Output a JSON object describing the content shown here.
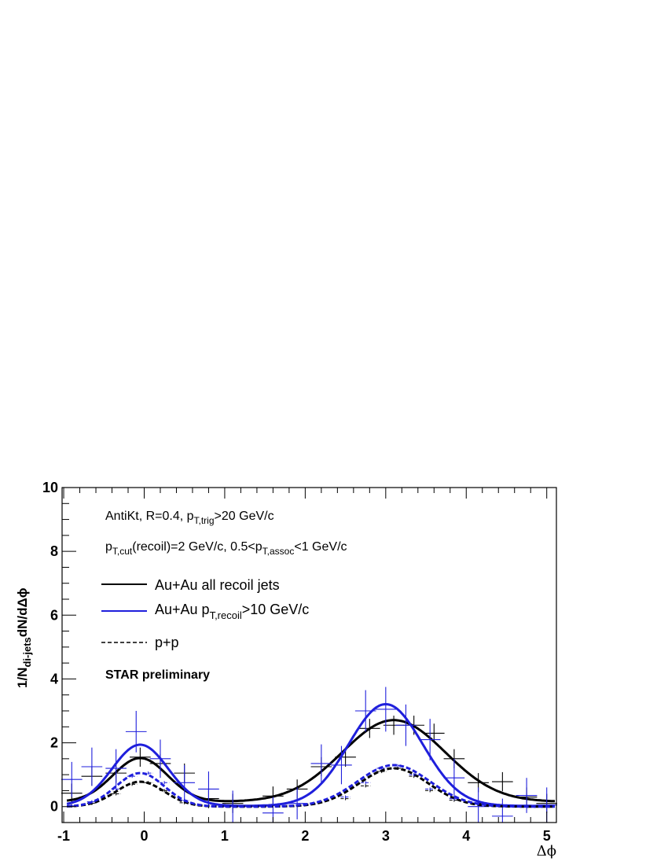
{
  "chart_data": {
    "type": "line",
    "xlabel": "Δϕ",
    "ylabel": "1/N",
    "ylabel_sub": "di-jets",
    "ylabel_tail": "dN/dΔϕ",
    "xlim": [
      -1.02,
      5.12
    ],
    "ylim": [
      -0.5,
      10
    ],
    "x_ticks": [
      -1,
      0,
      1,
      2,
      3,
      4,
      5
    ],
    "y_ticks": [
      0,
      2,
      4,
      6,
      8,
      10
    ],
    "annotation_line1": {
      "pre": "AntiKt, R=0.4, p",
      "sub": "T,trig",
      "post": ">20 GeV/c"
    },
    "annotation_line2": {
      "pre": "p",
      "sub": "T,cut",
      "mid": "(recoil)=2 GeV/c, 0.5<p",
      "sub2": "T,assoc",
      "post": "<1 GeV/c"
    },
    "label_preliminary": "STAR preliminary",
    "legend_placement": "top-left",
    "series": [
      {
        "name": "Au+Au all recoil jets",
        "legend": {
          "pre": "Au+Au all recoil jets",
          "sub": "",
          "post": ""
        },
        "color": "#000000",
        "dash": "solid",
        "curve_width": 3,
        "curve": {
          "peaks": [
            {
              "mu": -0.05,
              "sigma": 0.34,
              "amp": 1.37
            },
            {
              "mu": 3.1,
              "sigma": 0.64,
              "amp": 2.56
            }
          ],
          "base": 0.15
        },
        "points": [
          {
            "x": -0.9,
            "y": 0.42,
            "ex": 0.13,
            "ey": 0.3
          },
          {
            "x": -0.65,
            "y": 0.95,
            "ex": 0.13,
            "ey": 0.3
          },
          {
            "x": -0.35,
            "y": 1.05,
            "ex": 0.13,
            "ey": 0.3
          },
          {
            "x": -0.05,
            "y": 1.55,
            "ex": 0.13,
            "ey": 0.3
          },
          {
            "x": 0.2,
            "y": 1.35,
            "ex": 0.13,
            "ey": 0.3
          },
          {
            "x": 0.5,
            "y": 1.05,
            "ex": 0.13,
            "ey": 0.3
          },
          {
            "x": 0.8,
            "y": 0.25,
            "ex": 0.13,
            "ey": 0.3
          },
          {
            "x": 1.1,
            "y": 0.1,
            "ex": 0.13,
            "ey": 0.3
          },
          {
            "x": 1.6,
            "y": 0.33,
            "ex": 0.13,
            "ey": 0.3
          },
          {
            "x": 1.9,
            "y": 0.55,
            "ex": 0.13,
            "ey": 0.3
          },
          {
            "x": 2.2,
            "y": 1.25,
            "ex": 0.13,
            "ey": 0.3
          },
          {
            "x": 2.5,
            "y": 1.55,
            "ex": 0.13,
            "ey": 0.3
          },
          {
            "x": 2.8,
            "y": 2.45,
            "ex": 0.13,
            "ey": 0.3
          },
          {
            "x": 3.1,
            "y": 2.55,
            "ex": 0.13,
            "ey": 0.3
          },
          {
            "x": 3.35,
            "y": 2.55,
            "ex": 0.13,
            "ey": 0.3
          },
          {
            "x": 3.6,
            "y": 2.3,
            "ex": 0.13,
            "ey": 0.3
          },
          {
            "x": 3.85,
            "y": 1.5,
            "ex": 0.13,
            "ey": 0.3
          },
          {
            "x": 4.15,
            "y": 0.75,
            "ex": 0.13,
            "ey": 0.3
          },
          {
            "x": 4.45,
            "y": 0.78,
            "ex": 0.13,
            "ey": 0.3
          },
          {
            "x": 4.75,
            "y": 0.3,
            "ex": 0.13,
            "ey": 0.3
          },
          {
            "x": 5.0,
            "y": 0.1,
            "ex": 0.13,
            "ey": 0.3
          }
        ]
      },
      {
        "name": "Au+Au pT,recoil>10 GeV/c",
        "legend": {
          "pre": "Au+Au p",
          "sub": "T,recoil",
          "post": ">10 GeV/c"
        },
        "color": "#1f1fdc",
        "dash": "solid",
        "curve_width": 3,
        "curve": {
          "peaks": [
            {
              "mu": -0.05,
              "sigma": 0.35,
              "amp": 1.92
            },
            {
              "mu": 3.0,
              "sigma": 0.46,
              "amp": 3.19
            }
          ],
          "base": 0.02
        },
        "points": [
          {
            "x": -0.9,
            "y": 0.85,
            "ex": 0.13,
            "ey": 0.55
          },
          {
            "x": -0.65,
            "y": 1.25,
            "ex": 0.13,
            "ey": 0.6
          },
          {
            "x": -0.35,
            "y": 1.2,
            "ex": 0.13,
            "ey": 0.6
          },
          {
            "x": -0.1,
            "y": 2.35,
            "ex": 0.13,
            "ey": 0.65
          },
          {
            "x": 0.2,
            "y": 1.5,
            "ex": 0.13,
            "ey": 0.6
          },
          {
            "x": 0.5,
            "y": 0.75,
            "ex": 0.13,
            "ey": 0.55
          },
          {
            "x": 0.8,
            "y": 0.55,
            "ex": 0.13,
            "ey": 0.55
          },
          {
            "x": 1.1,
            "y": 0.0,
            "ex": 0.13,
            "ey": 0.5
          },
          {
            "x": 1.6,
            "y": -0.2,
            "ex": 0.13,
            "ey": 0.5
          },
          {
            "x": 1.9,
            "y": 0.1,
            "ex": 0.13,
            "ey": 0.5
          },
          {
            "x": 2.2,
            "y": 1.35,
            "ex": 0.13,
            "ey": 0.6
          },
          {
            "x": 2.45,
            "y": 1.3,
            "ex": 0.13,
            "ey": 0.6
          },
          {
            "x": 2.75,
            "y": 3.0,
            "ex": 0.13,
            "ey": 0.65
          },
          {
            "x": 3.0,
            "y": 3.05,
            "ex": 0.13,
            "ey": 0.7
          },
          {
            "x": 3.25,
            "y": 2.55,
            "ex": 0.13,
            "ey": 0.65
          },
          {
            "x": 3.55,
            "y": 2.1,
            "ex": 0.13,
            "ey": 0.65
          },
          {
            "x": 3.85,
            "y": 0.9,
            "ex": 0.13,
            "ey": 0.6
          },
          {
            "x": 4.15,
            "y": 0.0,
            "ex": 0.13,
            "ey": 0.6
          },
          {
            "x": 4.45,
            "y": -0.3,
            "ex": 0.13,
            "ey": 0.55
          },
          {
            "x": 4.75,
            "y": 0.35,
            "ex": 0.13,
            "ey": 0.55
          },
          {
            "x": 5.0,
            "y": 0.05,
            "ex": 0.13,
            "ey": 0.55
          }
        ]
      },
      {
        "name": "p+p",
        "legend": {
          "pre": "p+p",
          "sub": "",
          "post": ""
        },
        "color": "#000000",
        "dash": "dashed",
        "curve_width": 3,
        "curve": {
          "peaks": [
            {
              "mu": -0.05,
              "sigma": 0.3,
              "amp": 0.78
            },
            {
              "mu": 3.1,
              "sigma": 0.43,
              "amp": 1.2
            }
          ],
          "base": 0.0
        },
        "points": [
          {
            "x": -0.9,
            "y": 0.02,
            "ex": 0.06,
            "ey": 0.05
          },
          {
            "x": -0.65,
            "y": 0.1,
            "ex": 0.06,
            "ey": 0.05
          },
          {
            "x": -0.35,
            "y": 0.4,
            "ex": 0.06,
            "ey": 0.05
          },
          {
            "x": -0.15,
            "y": 0.7,
            "ex": 0.06,
            "ey": 0.05
          },
          {
            "x": 0.05,
            "y": 0.75,
            "ex": 0.06,
            "ey": 0.05
          },
          {
            "x": 0.25,
            "y": 0.5,
            "ex": 0.06,
            "ey": 0.05
          },
          {
            "x": 0.5,
            "y": 0.12,
            "ex": 0.06,
            "ey": 0.05
          },
          {
            "x": 2.5,
            "y": 0.25,
            "ex": 0.06,
            "ey": 0.05
          },
          {
            "x": 2.75,
            "y": 0.65,
            "ex": 0.06,
            "ey": 0.05
          },
          {
            "x": 2.95,
            "y": 1.1,
            "ex": 0.06,
            "ey": 0.05
          },
          {
            "x": 3.15,
            "y": 1.2,
            "ex": 0.06,
            "ey": 0.05
          },
          {
            "x": 3.35,
            "y": 0.95,
            "ex": 0.06,
            "ey": 0.05
          },
          {
            "x": 3.55,
            "y": 0.5,
            "ex": 0.06,
            "ey": 0.05
          },
          {
            "x": 3.85,
            "y": 0.2,
            "ex": 0.06,
            "ey": 0.05
          },
          {
            "x": 4.15,
            "y": 0.1,
            "ex": 0.06,
            "ey": 0.05
          }
        ]
      },
      {
        "name": "p+p (blue)",
        "legend": null,
        "color": "#1f1fdc",
        "dash": "dashed",
        "curve_width": 3,
        "curve": {
          "peaks": [
            {
              "mu": -0.05,
              "sigma": 0.3,
              "amp": 1.05
            },
            {
              "mu": 3.1,
              "sigma": 0.45,
              "amp": 1.3
            }
          ],
          "base": 0.0
        },
        "points": [
          {
            "x": -0.9,
            "y": 0.02,
            "ex": 0.06,
            "ey": 0.05
          },
          {
            "x": -0.65,
            "y": 0.15,
            "ex": 0.06,
            "ey": 0.05
          },
          {
            "x": -0.35,
            "y": 0.55,
            "ex": 0.06,
            "ey": 0.05
          },
          {
            "x": -0.15,
            "y": 0.95,
            "ex": 0.06,
            "ey": 0.05
          },
          {
            "x": 0.05,
            "y": 1.05,
            "ex": 0.06,
            "ey": 0.05
          },
          {
            "x": 0.25,
            "y": 0.75,
            "ex": 0.06,
            "ey": 0.05
          },
          {
            "x": 0.5,
            "y": 0.2,
            "ex": 0.06,
            "ey": 0.05
          },
          {
            "x": 2.5,
            "y": 0.3,
            "ex": 0.06,
            "ey": 0.05
          },
          {
            "x": 2.75,
            "y": 0.75,
            "ex": 0.06,
            "ey": 0.05
          },
          {
            "x": 2.95,
            "y": 1.2,
            "ex": 0.06,
            "ey": 0.05
          },
          {
            "x": 3.15,
            "y": 1.28,
            "ex": 0.06,
            "ey": 0.05
          },
          {
            "x": 3.35,
            "y": 1.0,
            "ex": 0.06,
            "ey": 0.05
          },
          {
            "x": 3.55,
            "y": 0.55,
            "ex": 0.06,
            "ey": 0.05
          },
          {
            "x": 3.85,
            "y": 0.25,
            "ex": 0.06,
            "ey": 0.05
          },
          {
            "x": 4.15,
            "y": 0.12,
            "ex": 0.06,
            "ey": 0.05
          }
        ]
      }
    ]
  }
}
